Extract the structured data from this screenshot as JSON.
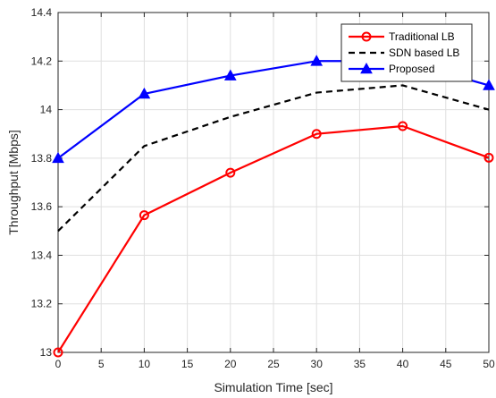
{
  "chart_data": {
    "type": "line",
    "title": "",
    "xlabel": "Simulation Time [sec]",
    "ylabel": "Throughput [Mbps]",
    "xlim": [
      0,
      50
    ],
    "ylim": [
      13,
      14.4
    ],
    "grid": true,
    "legend_position": "top-right",
    "x_ticks": [
      0,
      5,
      10,
      15,
      20,
      25,
      30,
      35,
      40,
      45,
      50
    ],
    "x_tick_labels": [
      "0",
      "5",
      "10",
      "15",
      "20",
      "25",
      "30",
      "35",
      "40",
      "45",
      "50"
    ],
    "y_ticks": [
      13,
      13.2,
      13.4,
      13.6,
      13.8,
      14,
      14.2,
      14.4
    ],
    "y_tick_labels": [
      "13",
      "13.2",
      "13.4",
      "13.6",
      "13.8",
      "14",
      "14.2",
      "14.4"
    ],
    "x": [
      0,
      10,
      20,
      30,
      40,
      50
    ],
    "series": [
      {
        "name": "Traditional LB",
        "values": [
          13.0,
          13.565,
          13.74,
          13.9,
          13.932,
          13.802
        ],
        "color": "#ff0000",
        "line_style": "solid",
        "marker": "circle"
      },
      {
        "name": "SDN based LB",
        "values": [
          13.5,
          13.85,
          13.97,
          14.07,
          14.1,
          14.0
        ],
        "color": "#000000",
        "line_style": "dashed",
        "marker": "none"
      },
      {
        "name": "Proposed",
        "values": [
          13.8,
          14.065,
          14.14,
          14.2,
          14.2,
          14.1
        ],
        "color": "#0000ff",
        "line_style": "solid",
        "marker": "triangle"
      }
    ]
  }
}
